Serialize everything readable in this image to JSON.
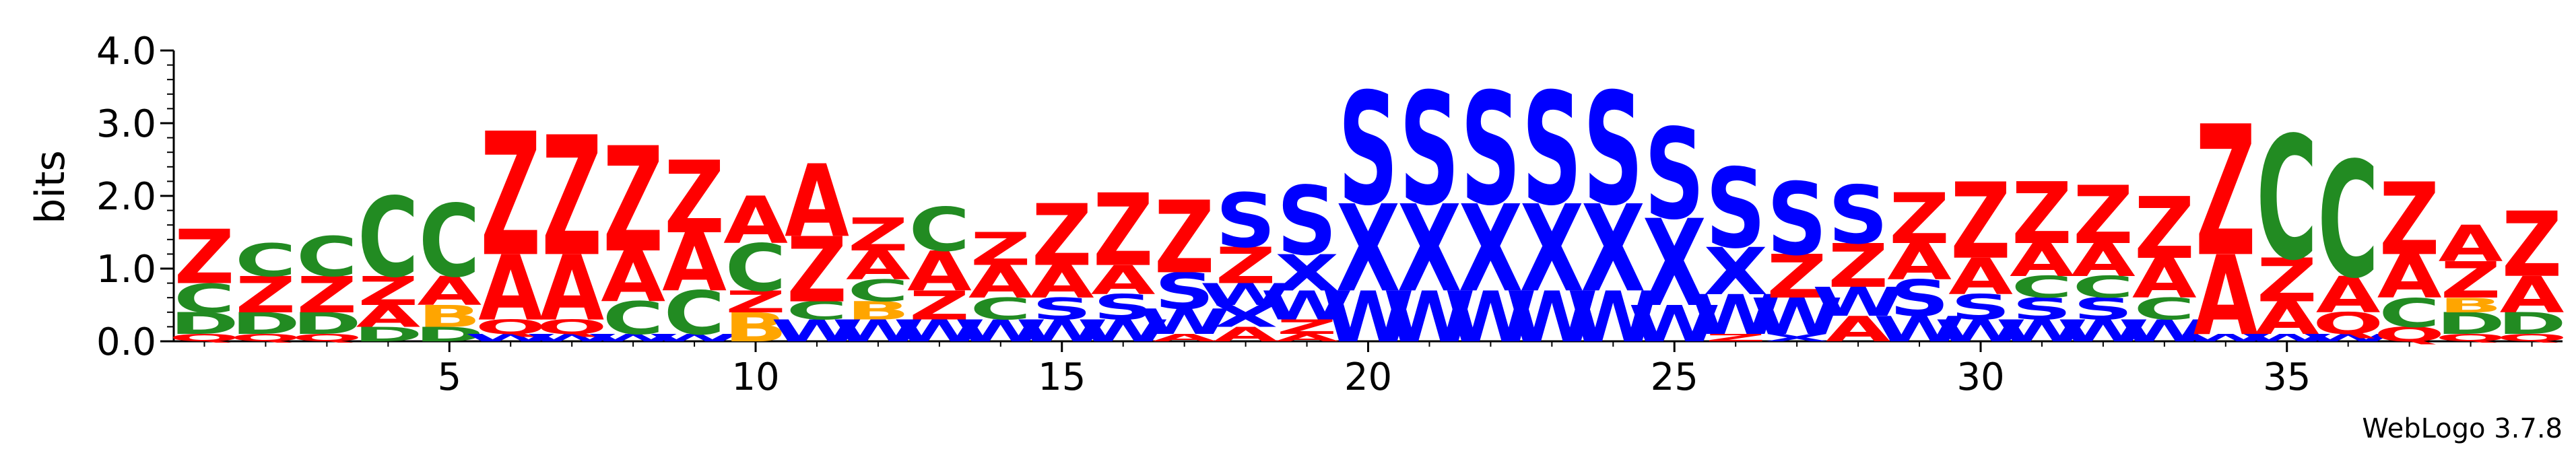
{
  "chart_data": {
    "type": "sequence-logo",
    "ylabel": "bits",
    "ylim": [
      0,
      4.0
    ],
    "yticks": [
      {
        "value": 0.0,
        "label": "0.0"
      },
      {
        "value": 1.0,
        "label": "1.0"
      },
      {
        "value": 2.0,
        "label": "2.0"
      },
      {
        "value": 3.0,
        "label": "3.0"
      },
      {
        "value": 4.0,
        "label": "4.0"
      }
    ],
    "xticks": [
      {
        "value": 5,
        "label": "5"
      },
      {
        "value": 10,
        "label": "10"
      },
      {
        "value": 15,
        "label": "15"
      },
      {
        "value": 20,
        "label": "20"
      },
      {
        "value": 25,
        "label": "25"
      },
      {
        "value": 30,
        "label": "30"
      },
      {
        "value": 35,
        "label": "35"
      }
    ],
    "positions": 39,
    "colors": {
      "Z": "#ff0000",
      "A": "#ff0000",
      "C": "#228b22",
      "D": "#228b22",
      "S": "#0000ff",
      "X": "#0000ff",
      "W": "#0000ff",
      "B": "#ffa500",
      "Q": "#ff0000"
    },
    "columns": [
      [
        [
          "Q",
          0.1
        ],
        [
          "D",
          0.3
        ],
        [
          "C",
          0.4
        ],
        [
          "Z",
          0.75
        ]
      ],
      [
        [
          "Q",
          0.1
        ],
        [
          "D",
          0.3
        ],
        [
          "Z",
          0.5
        ],
        [
          "C",
          0.45
        ]
      ],
      [
        [
          "Q",
          0.1
        ],
        [
          "D",
          0.3
        ],
        [
          "Z",
          0.5
        ],
        [
          "C",
          0.55
        ]
      ],
      [
        [
          "D",
          0.2
        ],
        [
          "A",
          0.3
        ],
        [
          "Z",
          0.4
        ],
        [
          "C",
          1.1
        ]
      ],
      [
        [
          "D",
          0.2
        ],
        [
          "B",
          0.3
        ],
        [
          "A",
          0.4
        ],
        [
          "C",
          1.0
        ]
      ],
      [
        [
          "W",
          0.1
        ],
        [
          "Q",
          0.2
        ],
        [
          "A",
          0.9
        ],
        [
          "Z",
          1.7
        ]
      ],
      [
        [
          "W",
          0.1
        ],
        [
          "Q",
          0.2
        ],
        [
          "A",
          0.9
        ],
        [
          "Z",
          1.65
        ]
      ],
      [
        [
          "W",
          0.1
        ],
        [
          "C",
          0.45
        ],
        [
          "A",
          0.7
        ],
        [
          "Z",
          1.45
        ]
      ],
      [
        [
          "W",
          0.1
        ],
        [
          "C",
          0.6
        ],
        [
          "A",
          0.8
        ],
        [
          "Z",
          1.0
        ]
      ],
      [
        [
          "B",
          0.4
        ],
        [
          "Z",
          0.3
        ],
        [
          "C",
          0.65
        ],
        [
          "A",
          0.65
        ]
      ],
      [
        [
          "W",
          0.3
        ],
        [
          "C",
          0.25
        ],
        [
          "Z",
          0.9
        ],
        [
          "A",
          1.0
        ]
      ],
      [
        [
          "W",
          0.3
        ],
        [
          "B",
          0.25
        ],
        [
          "C",
          0.3
        ],
        [
          "A",
          0.4
        ],
        [
          "Z",
          0.45
        ]
      ],
      [
        [
          "W",
          0.3
        ],
        [
          "Z",
          0.4
        ],
        [
          "A",
          0.55
        ],
        [
          "C",
          0.6
        ]
      ],
      [
        [
          "W",
          0.3
        ],
        [
          "C",
          0.3
        ],
        [
          "A",
          0.45
        ],
        [
          "Z",
          0.45
        ]
      ],
      [
        [
          "W",
          0.3
        ],
        [
          "S",
          0.3
        ],
        [
          "A",
          0.45
        ],
        [
          "Z",
          0.85
        ]
      ],
      [
        [
          "W",
          0.3
        ],
        [
          "S",
          0.35
        ],
        [
          "A",
          0.4
        ],
        [
          "Z",
          1.0
        ]
      ],
      [
        [
          "A",
          0.1
        ],
        [
          "W",
          0.35
        ],
        [
          "S",
          0.5
        ],
        [
          "Z",
          1.0
        ]
      ],
      [
        [
          "A",
          0.2
        ],
        [
          "X",
          0.3
        ],
        [
          "W",
          0.3
        ],
        [
          "Z",
          0.5
        ],
        [
          "S",
          0.75
        ]
      ],
      [
        [
          "A",
          0.1
        ],
        [
          "Z",
          0.2
        ],
        [
          "W",
          0.4
        ],
        [
          "X",
          0.5
        ],
        [
          "S",
          0.95
        ]
      ],
      [
        [
          "W",
          0.7
        ],
        [
          "X",
          1.2
        ],
        [
          "S",
          1.55
        ]
      ],
      [
        [
          "W",
          0.7
        ],
        [
          "X",
          1.2
        ],
        [
          "S",
          1.55
        ]
      ],
      [
        [
          "W",
          0.7
        ],
        [
          "X",
          1.2
        ],
        [
          "S",
          1.55
        ]
      ],
      [
        [
          "W",
          0.7
        ],
        [
          "X",
          1.2
        ],
        [
          "S",
          1.55
        ]
      ],
      [
        [
          "W",
          0.7
        ],
        [
          "X",
          1.2
        ],
        [
          "S",
          1.55
        ]
      ],
      [
        [
          "W",
          0.5
        ],
        [
          "X",
          1.2
        ],
        [
          "S",
          1.25
        ]
      ],
      [
        [
          "Z",
          0.1
        ],
        [
          "W",
          0.55
        ],
        [
          "X",
          0.65
        ],
        [
          "S",
          1.1
        ]
      ],
      [
        [
          "X",
          0.1
        ],
        [
          "W",
          0.5
        ],
        [
          "Z",
          0.6
        ],
        [
          "S",
          1.0
        ]
      ],
      [
        [
          "A",
          0.35
        ],
        [
          "W",
          0.4
        ],
        [
          "Z",
          0.6
        ],
        [
          "S",
          0.8
        ]
      ],
      [
        [
          "W",
          0.35
        ],
        [
          "S",
          0.5
        ],
        [
          "A",
          0.5
        ],
        [
          "Z",
          0.7
        ]
      ],
      [
        [
          "W",
          0.3
        ],
        [
          "S",
          0.35
        ],
        [
          "A",
          0.5
        ],
        [
          "Z",
          1.05
        ]
      ],
      [
        [
          "W",
          0.3
        ],
        [
          "S",
          0.3
        ],
        [
          "C",
          0.3
        ],
        [
          "A",
          0.45
        ],
        [
          "Z",
          0.85
        ]
      ],
      [
        [
          "W",
          0.3
        ],
        [
          "S",
          0.3
        ],
        [
          "C",
          0.3
        ],
        [
          "A",
          0.45
        ],
        [
          "Z",
          0.8
        ]
      ],
      [
        [
          "W",
          0.3
        ],
        [
          "C",
          0.3
        ],
        [
          "A",
          0.55
        ],
        [
          "Z",
          0.85
        ]
      ],
      [
        [
          "W",
          0.1
        ],
        [
          "A",
          1.1
        ],
        [
          "Z",
          1.8
        ]
      ],
      [
        [
          "W",
          0.1
        ],
        [
          "A",
          0.45
        ],
        [
          "Z",
          0.6
        ],
        [
          "C",
          1.7
        ]
      ],
      [
        [
          "W",
          0.1
        ],
        [
          "Q",
          0.3
        ],
        [
          "A",
          0.5
        ],
        [
          "C",
          1.6
        ]
      ],
      [
        [
          "Q",
          0.2
        ],
        [
          "C",
          0.4
        ],
        [
          "A",
          0.6
        ],
        [
          "Z",
          1.0
        ]
      ],
      [
        [
          "Q",
          0.1
        ],
        [
          "D",
          0.3
        ],
        [
          "B",
          0.2
        ],
        [
          "Z",
          0.5
        ],
        [
          "A",
          0.5
        ]
      ],
      [
        [
          "Q",
          0.1
        ],
        [
          "D",
          0.3
        ],
        [
          "A",
          0.5
        ],
        [
          "Z",
          0.9
        ]
      ]
    ]
  },
  "footer": {
    "credit": "WebLogo 3.7.8"
  }
}
